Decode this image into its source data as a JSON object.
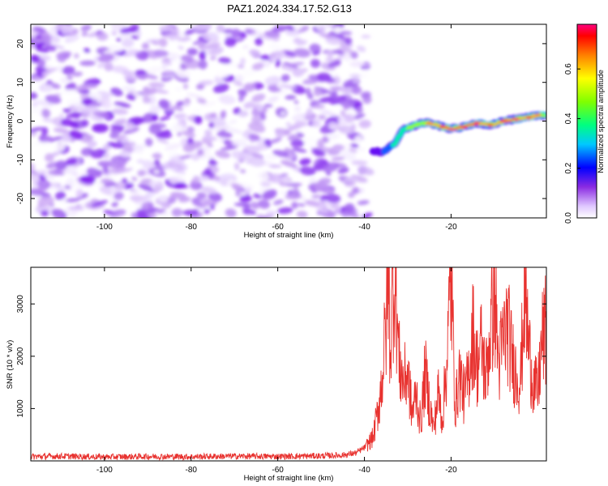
{
  "figure": {
    "title": "PAZ1.2024.334.17.52.G13"
  },
  "chart_data": [
    {
      "type": "heatmap",
      "title": "PAZ1.2024.334.17.52.G13",
      "xlabel": "Height of straight line (km)",
      "ylabel": "Frequency (Hz)",
      "xlim": [
        -117,
        2
      ],
      "ylim": [
        -25,
        25
      ],
      "x_ticks": [
        -100,
        -80,
        -60,
        -40,
        -20
      ],
      "y_ticks": [
        -20,
        -10,
        0,
        10,
        20
      ],
      "colorbar": {
        "label": "Normalized spectral amplitude",
        "range": [
          0,
          0.78
        ],
        "ticks": [
          0.0,
          0.2,
          0.4,
          0.6
        ],
        "colormap": "hsv-rainbow (white at 0, magenta at max)"
      },
      "noise_region": {
        "x_range": [
          -117,
          -39
        ],
        "y_range": [
          -25,
          25
        ],
        "amplitude": [
          0.0,
          0.15
        ]
      },
      "signal_ridge": {
        "x": [
          -39,
          -36,
          -33,
          -31,
          -29,
          -27,
          -25,
          -22,
          -20,
          -17,
          -14,
          -11,
          -8,
          -5,
          -2,
          0,
          2
        ],
        "freq_hz": [
          -7.5,
          -8,
          -6,
          -2,
          -1.5,
          -0.5,
          -0.5,
          -1.5,
          -2,
          -1.5,
          -0.5,
          -1,
          0,
          0.5,
          1,
          1.5,
          1.5
        ],
        "peak_amplitude": [
          0.1,
          0.18,
          0.35,
          0.4,
          0.5,
          0.55,
          0.6,
          0.7,
          0.75,
          0.7,
          0.72,
          0.65,
          0.7,
          0.72,
          0.65,
          0.6,
          0.55
        ]
      },
      "grid": false,
      "legend": "none"
    },
    {
      "type": "line",
      "xlabel": "Height of straight line (km)",
      "ylabel": "SNR (10 * v/v)",
      "xlim": [
        -117,
        2
      ],
      "ylim": [
        0,
        3700
      ],
      "x_ticks": [
        -100,
        -80,
        -60,
        -40,
        -20
      ],
      "y_ticks": [
        1000,
        2000,
        3000
      ],
      "series": [
        {
          "color": "#e8322f",
          "x": [
            -117,
            -110,
            -100,
            -90,
            -80,
            -70,
            -60,
            -50,
            -45,
            -42,
            -40,
            -38,
            -37,
            -36,
            -35,
            -34.5,
            -34,
            -33.5,
            -33,
            -32.5,
            -32,
            -31,
            -30,
            -29,
            -28,
            -27,
            -26,
            -25,
            -24,
            -23,
            -22,
            -21,
            -20,
            -19,
            -18,
            -17,
            -16,
            -15,
            -14,
            -13,
            -12,
            -11,
            -10,
            -9,
            -8,
            -7,
            -6,
            -5,
            -4,
            -3,
            -2,
            -1,
            0,
            1,
            2
          ],
          "values": [
            80,
            90,
            75,
            85,
            80,
            90,
            85,
            95,
            110,
            150,
            250,
            450,
            900,
            1500,
            2600,
            3500,
            2100,
            3200,
            3700,
            2800,
            1900,
            1500,
            1700,
            900,
            1300,
            700,
            1700,
            1100,
            600,
            1300,
            800,
            1900,
            3500,
            1000,
            1700,
            1200,
            1600,
            2500,
            1800,
            2200,
            1600,
            2400,
            3300,
            1800,
            2300,
            2600,
            2000,
            1700,
            1500,
            3300,
            2100,
            1500,
            1300,
            2300,
            2500
          ]
        }
      ],
      "grid": false,
      "legend": "none"
    }
  ]
}
